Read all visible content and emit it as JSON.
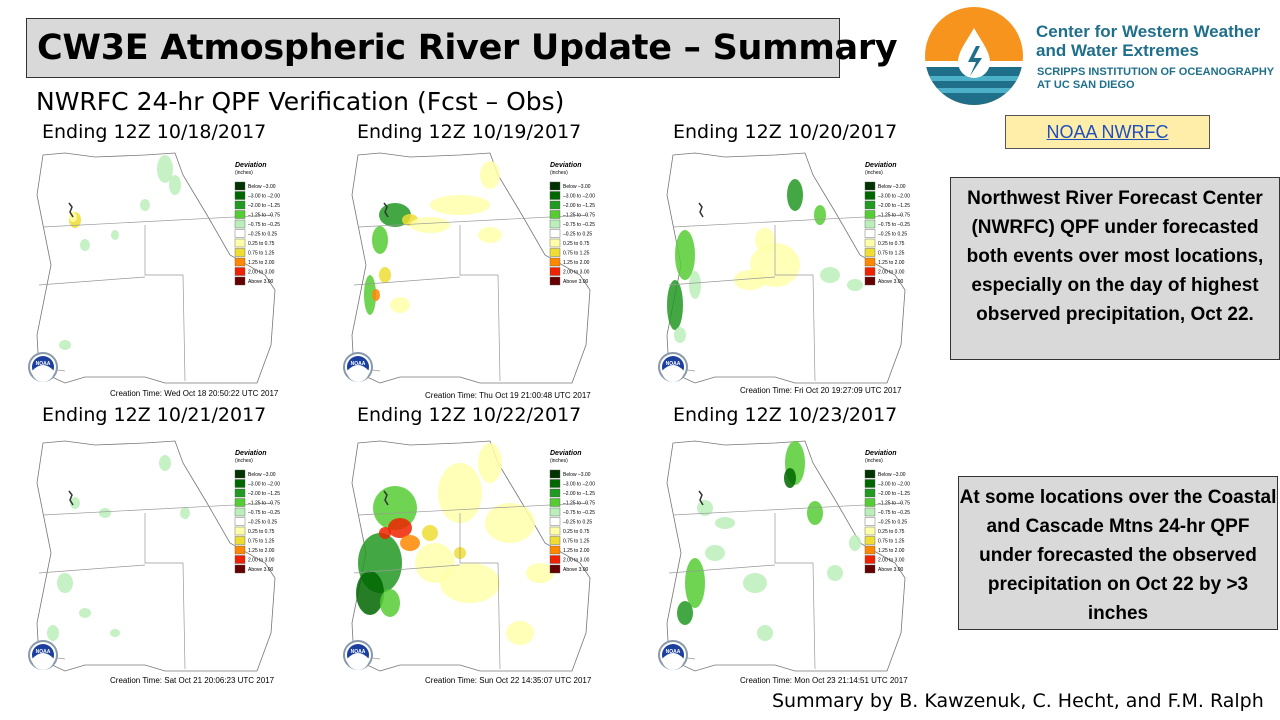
{
  "slide": {
    "title": "CW3E Atmospheric River Update – Summary",
    "subtitle": "NWRFC 24-hr QPF Verification (Fcst – Obs)",
    "credit": "Summary by B. Kawzenuk, C. Hecht, and F.M. Ralph"
  },
  "org": {
    "name_line1": "Center for Western Weather",
    "name_line2": "and Water Extremes",
    "sub_line1": "SCRIPPS INSTITUTION OF OCEANOGRAPHY",
    "sub_line2": "AT UC SAN DIEGO",
    "colors": {
      "orange": "#f7941d",
      "blue": "#1f6f8b",
      "teal": "#4bb0c8"
    }
  },
  "link": {
    "label": "NOAA NWRFC"
  },
  "notes": [
    "Northwest River Forecast Center (NWRFC) QPF under forecasted both events over most locations, especially on the day of highest observed precipitation, Oct 22.",
    "At some locations over the Coastal and Cascade Mtns 24-hr QPF under forecasted the observed precipitation on Oct 22 by >3 inches"
  ],
  "legend": {
    "title": "Deviation",
    "units": "(inches)",
    "items": [
      {
        "label": "Below –3.00",
        "color": "#003300"
      },
      {
        "label": "–3.00 to –2.00",
        "color": "#006600"
      },
      {
        "label": "–2.00 to –1.25",
        "color": "#229922"
      },
      {
        "label": "–1.25 to –0.75",
        "color": "#55cc33"
      },
      {
        "label": "–0.75 to –0.25",
        "color": "#bbeebb"
      },
      {
        "label": "–0.25 to 0.25",
        "color": "#ffffff"
      },
      {
        "label": "0.25 to 0.75",
        "color": "#ffffaa"
      },
      {
        "label": "0.75 to 1.25",
        "color": "#eedd33"
      },
      {
        "label": "1.25 to 2.00",
        "color": "#ff8800"
      },
      {
        "label": "2.00 to 3.00",
        "color": "#ee2200"
      },
      {
        "label": "Above 3.00",
        "color": "#660000"
      }
    ]
  },
  "panels": [
    {
      "label": "Ending 12Z 10/18/2017",
      "creation": "Creation Time: Wed Oct 18 20:50:22 UTC 2017"
    },
    {
      "label": "Ending 12Z 10/19/2017",
      "creation": "Creation Time: Thu Oct 19 21:00:48 UTC 2017"
    },
    {
      "label": "Ending 12Z 10/20/2017",
      "creation": "Creation Time: Fri Oct 20 19:27:09 UTC 2017"
    },
    {
      "label": "Ending 12Z 10/21/2017",
      "creation": "Creation Time: Sat Oct 21 20:06:23 UTC 2017"
    },
    {
      "label": "Ending 12Z 10/22/2017",
      "creation": "Creation Time: Sun Oct 22 14:35:07 UTC 2017"
    },
    {
      "label": "Ending 12Z 10/23/2017",
      "creation": "Creation Time: Mon Oct 23 21:14:51 UTC 2017"
    }
  ],
  "noaa_logo_text": "NOAA"
}
